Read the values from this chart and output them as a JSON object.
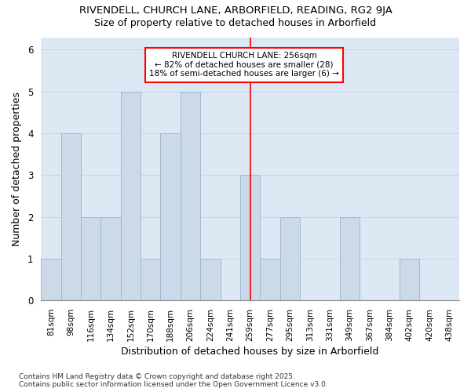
{
  "title_line1": "RIVENDELL, CHURCH LANE, ARBORFIELD, READING, RG2 9JA",
  "title_line2": "Size of property relative to detached houses in Arborfield",
  "xlabel": "Distribution of detached houses by size in Arborfield",
  "ylabel": "Number of detached properties",
  "categories": [
    "81sqm",
    "98sqm",
    "116sqm",
    "134sqm",
    "152sqm",
    "170sqm",
    "188sqm",
    "206sqm",
    "224sqm",
    "241sqm",
    "259sqm",
    "277sqm",
    "295sqm",
    "313sqm",
    "331sqm",
    "349sqm",
    "367sqm",
    "384sqm",
    "402sqm",
    "420sqm",
    "438sqm"
  ],
  "values": [
    1,
    4,
    2,
    2,
    5,
    1,
    4,
    5,
    1,
    0,
    3,
    1,
    2,
    0,
    0,
    2,
    0,
    0,
    1,
    0,
    0
  ],
  "bar_color": "#ccd9e8",
  "bar_edge_color": "#a0b8d0",
  "grid_color": "#c8d4e0",
  "background_color": "#dce8f4",
  "vline_x_index": 10,
  "vline_color": "red",
  "annotation_text": "RIVENDELL CHURCH LANE: 256sqm\n← 82% of detached houses are smaller (28)\n18% of semi-detached houses are larger (6) →",
  "annotation_box_color": "white",
  "annotation_box_edge_color": "red",
  "ylim": [
    0,
    6.3
  ],
  "yticks": [
    0,
    1,
    2,
    3,
    4,
    5,
    6
  ],
  "footnote": "Contains HM Land Registry data © Crown copyright and database right 2025.\nContains public sector information licensed under the Open Government Licence v3.0."
}
